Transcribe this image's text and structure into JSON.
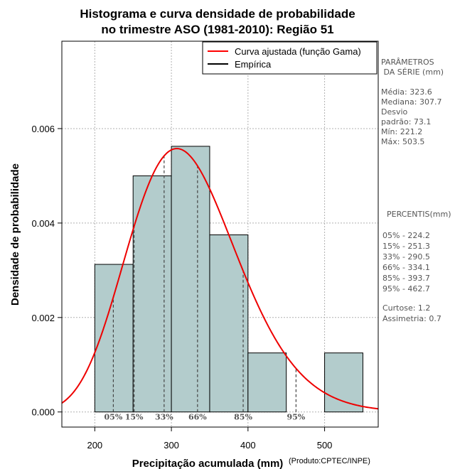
{
  "chart_data": {
    "type": "bar",
    "title_line1": "Histograma e curva densidade de probabilidade",
    "title_line2": "no trimestre ASO (1981-2010): Região 51",
    "xlabel": "Precipitação acumulada (mm)",
    "ylabel": "Densidade de probabilidade",
    "credit": "(Produto:CPTEC/INPE)",
    "xlim": [
      157,
      570
    ],
    "ylim": [
      -0.00032,
      0.00785
    ],
    "x_ticks": [
      {
        "value": 200,
        "label": "200"
      },
      {
        "value": 300,
        "label": "300"
      },
      {
        "value": 400,
        "label": "400"
      },
      {
        "value": 500,
        "label": "500"
      }
    ],
    "y_ticks": [
      {
        "value": 0.0,
        "label": "0.000"
      },
      {
        "value": 0.002,
        "label": "0.002"
      },
      {
        "value": 0.004,
        "label": "0.004"
      },
      {
        "value": 0.006,
        "label": "0.006"
      }
    ],
    "grid": true,
    "bins": [
      {
        "from": 200,
        "to": 250,
        "density": 0.003125
      },
      {
        "from": 250,
        "to": 300,
        "density": 0.005
      },
      {
        "from": 300,
        "to": 350,
        "density": 0.005625
      },
      {
        "from": 350,
        "to": 400,
        "density": 0.00375
      },
      {
        "from": 400,
        "to": 450,
        "density": 0.00125
      },
      {
        "from": 450,
        "to": 500,
        "density": 0
      },
      {
        "from": 500,
        "to": 550,
        "density": 0.00125
      }
    ],
    "gamma_curve": {
      "mean": 323.6,
      "sd": 73.1
    },
    "percentiles": [
      {
        "label": "05%",
        "value": 224.2
      },
      {
        "label": "15%",
        "value": 251.3
      },
      {
        "label": "33%",
        "value": 290.5
      },
      {
        "label": "66%",
        "value": 334.1
      },
      {
        "label": "85%",
        "value": 393.7
      },
      {
        "label": "95%",
        "value": 462.7
      }
    ],
    "legend": {
      "position": "top-right",
      "entries": [
        {
          "label": "Curva ajustada (função Gama)",
          "color": "#ff0000"
        },
        {
          "label": "Empírica",
          "color": "#000000"
        }
      ]
    },
    "colors": {
      "bar_fill": "#b3cccc",
      "curve": "#ee0000",
      "percentile_line": "#444444",
      "grid": "#b0b0b0"
    }
  },
  "side_panel": {
    "params_title": [
      "PARÂMETROS",
      " DA SÉRIE (mm)"
    ],
    "params": [
      "Média:  323.6",
      "Mediana:  307.7",
      "Desvio",
      "padrão:  73.1",
      "Mín:  221.2",
      "Máx:  503.5"
    ],
    "percentis_title": "PERCENTIS(mm)",
    "percentis": [
      "05% -  224.2",
      "15% -  251.3",
      "33% -  290.5",
      "66% -  334.1",
      "85% -  393.7",
      "95% -  462.7"
    ],
    "shape": [
      "Curtose:  1.2",
      "Assimetria:  0.7"
    ]
  }
}
